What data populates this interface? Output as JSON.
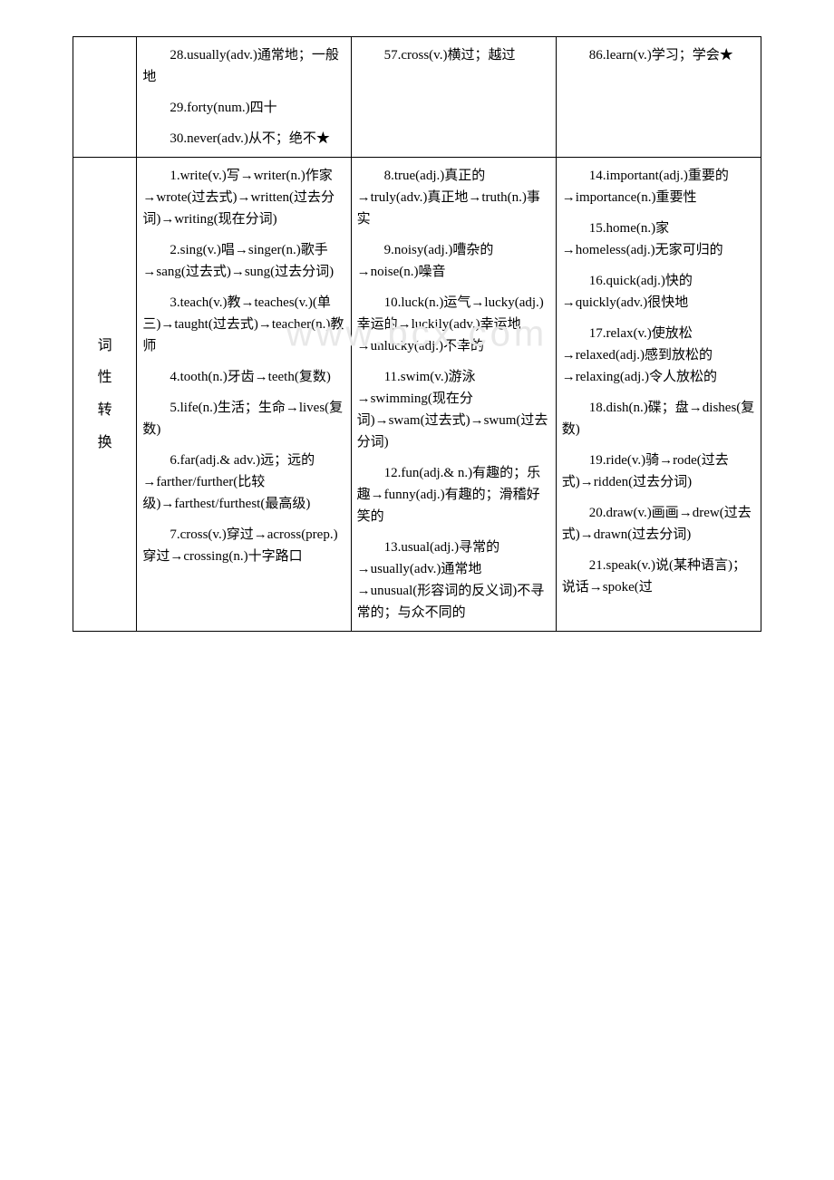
{
  "watermark": "www.bcx.com",
  "row1": {
    "label": "",
    "colA": [
      "28.usually(adv.)通常地；一般地",
      "29.forty(num.)四十",
      "30.never(adv.)从不；绝不★"
    ],
    "colB": [
      "57.cross(v.)横过；越过"
    ],
    "colC": [
      "86.learn(v.)学习；学会★"
    ]
  },
  "row2": {
    "label_chars": [
      "词",
      "性",
      "转",
      "换"
    ],
    "colA": [
      "1.write(v.)写→writer(n.)作家→wrote(过去式)→written(过去分词)→writing(现在分词)",
      "2.sing(v.)唱→singer(n.)歌手→sang(过去式)→sung(过去分词)",
      "3.teach(v.)教→teaches(v.)(单三)→taught(过去式)→teacher(n.)教师",
      "4.tooth(n.)牙齿→teeth(复数)",
      "5.life(n.)生活；生命→lives(复数)",
      "6.far(adj.& adv.)远；远的→farther/further(比较级)→farthest/furthest(最高级)",
      "7.cross(v.)穿过→across(prep.)穿过→crossing(n.)十字路口"
    ],
    "colB": [
      "8.true(adj.)真正的→truly(adv.)真正地→truth(n.)事实",
      "9.noisy(adj.)嘈杂的→noise(n.)噪音",
      "10.luck(n.)运气→lucky(adj.)幸运的→luckily(adv.)幸运地→unlucky(adj.)不幸的",
      "11.swim(v.)游泳→swimming(现在分词)→swam(过去式)→swum(过去分词)",
      "12.fun(adj.& n.)有趣的；乐趣→funny(adj.)有趣的；滑稽好笑的",
      "13.usual(adj.)寻常的→usually(adv.)通常地→unusual(形容词的反义词)不寻常的；与众不同的"
    ],
    "colC": [
      "14.important(adj.)重要的→importance(n.)重要性",
      "15.home(n.)家→homeless(adj.)无家可归的",
      "16.quick(adj.)快的→quickly(adv.)很快地",
      "17.relax(v.)使放松→relaxed(adj.)感到放松的→relaxing(adj.)令人放松的",
      "18.dish(n.)碟；盘→dishes(复数)",
      "19.ride(v.)骑→rode(过去式)→ridden(过去分词)",
      "20.draw(v.)画画→drew(过去式)→drawn(过去分词)",
      "21.speak(v.)说(某种语言)；说话→spoke(过"
    ]
  }
}
